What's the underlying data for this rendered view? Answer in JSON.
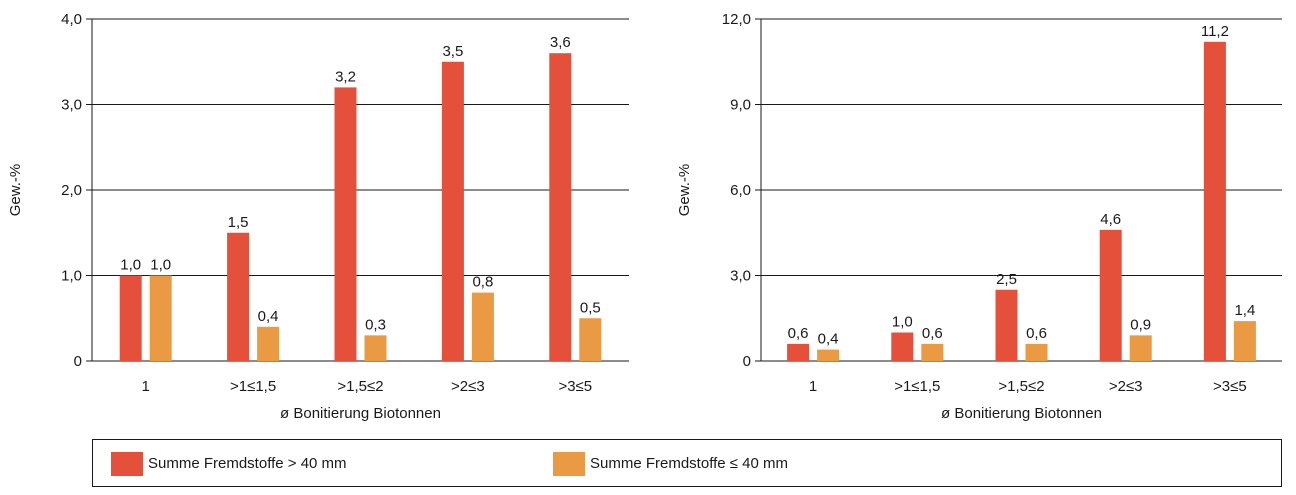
{
  "legend": {
    "items": [
      {
        "label": "Summe Fremdstoffe > 40 mm",
        "color": "#e4503a"
      },
      {
        "label": "Summe Fremdstoffe ≤ 40 mm",
        "color": "#e99a42"
      }
    ]
  },
  "chart_data": [
    {
      "type": "bar",
      "title": "",
      "xlabel": "ø Bonitierung Biotonnen",
      "ylabel": "Gew.-%",
      "ylim": [
        0,
        4
      ],
      "yticks": [
        0,
        1,
        2,
        3,
        4
      ],
      "ytick_labels": [
        "0",
        "1,0",
        "2,0",
        "3,0",
        "4,0"
      ],
      "grid": true,
      "categories": [
        "1",
        ">1≤1,5",
        ">1,5≤2",
        ">2≤3",
        ">3≤5"
      ],
      "series": [
        {
          "name": "Summe Fremdstoffe > 40 mm",
          "color": "#e4503a",
          "values": [
            1.0,
            1.5,
            3.2,
            3.5,
            3.6
          ],
          "labels": [
            "1,0",
            "1,5",
            "3,2",
            "3,5",
            "3,6"
          ]
        },
        {
          "name": "Summe Fremdstoffe ≤ 40 mm",
          "color": "#e99a42",
          "values": [
            1.0,
            0.4,
            0.3,
            0.8,
            0.5
          ],
          "labels": [
            "1,0",
            "0,4",
            "0,3",
            "0,8",
            "0,5"
          ]
        }
      ]
    },
    {
      "type": "bar",
      "title": "",
      "xlabel": "ø Bonitierung Biotonnen",
      "ylabel": "Gew.-%",
      "ylim": [
        0,
        12
      ],
      "yticks": [
        0,
        3,
        6,
        9,
        12
      ],
      "ytick_labels": [
        "0",
        "3,0",
        "6,0",
        "9,0",
        "12,0"
      ],
      "grid": true,
      "categories": [
        "1",
        ">1≤1,5",
        ">1,5≤2",
        ">2≤3",
        ">3≤5"
      ],
      "series": [
        {
          "name": "Summe Fremdstoffe > 40 mm",
          "color": "#e4503a",
          "values": [
            0.6,
            1.0,
            2.5,
            4.6,
            11.2
          ],
          "labels": [
            "0,6",
            "1,0",
            "2,5",
            "4,6",
            "11,2"
          ]
        },
        {
          "name": "Summe Fremdstoffe ≤ 40 mm",
          "color": "#e99a42",
          "values": [
            0.4,
            0.6,
            0.6,
            0.9,
            1.4
          ],
          "labels": [
            "0,4",
            "0,6",
            "0,6",
            "0,9",
            "1,4"
          ]
        }
      ]
    }
  ]
}
